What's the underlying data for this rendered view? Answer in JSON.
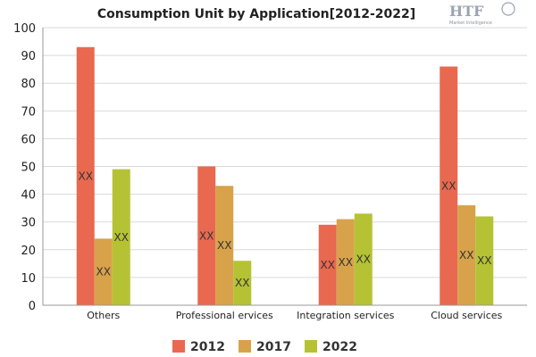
{
  "logo": {
    "brand": "HTF",
    "tagline": "Market Intelligence"
  },
  "chart_data": {
    "type": "bar",
    "title": "Consumption Unit by  Application[2012-2022]",
    "xlabel": "",
    "ylabel": "",
    "ylim": [
      0,
      100
    ],
    "yticks": [
      0,
      10,
      20,
      30,
      40,
      50,
      60,
      70,
      80,
      90,
      100
    ],
    "grid": true,
    "legend_position": "bottom",
    "categories": [
      "Others",
      "Professional ervices",
      "Integration services",
      "Cloud services"
    ],
    "series": [
      {
        "name": "2012",
        "color": "#e8694f",
        "values": [
          93,
          50,
          29,
          86
        ],
        "labels": [
          "XX",
          "XX",
          "XX",
          "XX"
        ]
      },
      {
        "name": "2017",
        "color": "#d8a24b",
        "values": [
          24,
          43,
          31,
          36
        ],
        "labels": [
          "XX",
          "XX",
          "XX",
          "XX"
        ]
      },
      {
        "name": "2022",
        "color": "#b5c234",
        "values": [
          49,
          16,
          33,
          32
        ],
        "labels": [
          "XX",
          "XX",
          "XX",
          "XX"
        ]
      }
    ]
  }
}
